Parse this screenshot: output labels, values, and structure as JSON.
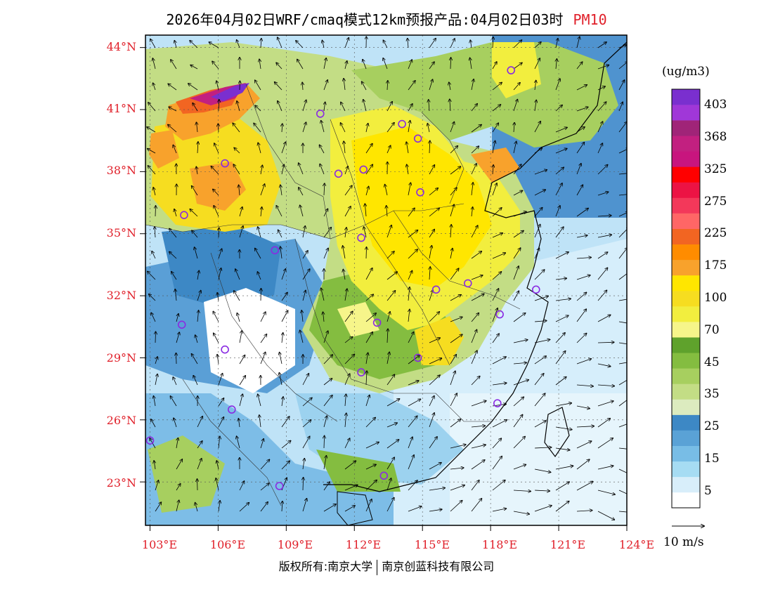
{
  "header": {
    "title": "2026年04月02日WRF/cmaq模式12km预报产品:04月02日03时",
    "pollutant": "PM10"
  },
  "map": {
    "lat_labels": [
      "44°N",
      "41°N",
      "38°N",
      "35°N",
      "32°N",
      "29°N",
      "26°N",
      "23°N"
    ],
    "lon_labels": [
      "103°E",
      "106°E",
      "109°E",
      "112°E",
      "115°E",
      "118°E",
      "121°E",
      "124°E"
    ],
    "extent": {
      "lon_min": 102.8,
      "lon_max": 124,
      "lat_min": 20.9,
      "lat_max": 44.6
    },
    "stations": [
      {
        "lon": 118.9,
        "lat": 42.9
      },
      {
        "lon": 110.5,
        "lat": 40.8
      },
      {
        "lon": 114.1,
        "lat": 40.3
      },
      {
        "lon": 114.8,
        "lat": 39.6
      },
      {
        "lon": 106.3,
        "lat": 38.4
      },
      {
        "lon": 111.3,
        "lat": 37.9
      },
      {
        "lon": 112.4,
        "lat": 38.1
      },
      {
        "lon": 114.9,
        "lat": 37.0
      },
      {
        "lon": 104.5,
        "lat": 35.9
      },
      {
        "lon": 112.3,
        "lat": 34.8
      },
      {
        "lon": 108.5,
        "lat": 34.2
      },
      {
        "lon": 115.6,
        "lat": 32.3
      },
      {
        "lon": 117.0,
        "lat": 32.6
      },
      {
        "lon": 120.0,
        "lat": 32.3
      },
      {
        "lon": 104.4,
        "lat": 30.6
      },
      {
        "lon": 113.0,
        "lat": 30.7
      },
      {
        "lon": 118.4,
        "lat": 31.1
      },
      {
        "lon": 106.3,
        "lat": 29.4
      },
      {
        "lon": 114.8,
        "lat": 29.0
      },
      {
        "lon": 112.3,
        "lat": 28.3
      },
      {
        "lon": 106.6,
        "lat": 26.5
      },
      {
        "lon": 118.3,
        "lat": 26.8
      },
      {
        "lon": 103.0,
        "lat": 25.0
      },
      {
        "lon": 108.7,
        "lat": 22.8
      },
      {
        "lon": 113.3,
        "lat": 23.3
      }
    ]
  },
  "colorbar": {
    "unit": "(ug/m3)",
    "colors": [
      "#ffffff",
      "#d8eefa",
      "#a6dcf3",
      "#78bde6",
      "#5aa2d6",
      "#3d88c5",
      "#dcebbf",
      "#c3dd85",
      "#a7cf5f",
      "#84bd40",
      "#5fa22c",
      "#f6f58a",
      "#f2ee3e",
      "#f6dd20",
      "#ffe600",
      "#f8a22c",
      "#ff8c00",
      "#f26522",
      "#ff6666",
      "#f3385a",
      "#ec1344",
      "#ff0000",
      "#c8157e",
      "#c22080",
      "#a02478",
      "#a037d8",
      "#7a2fcf"
    ],
    "labels": [
      "5",
      "15",
      "25",
      "35",
      "45",
      "70",
      "100",
      "175",
      "225",
      "275",
      "325",
      "368",
      "403"
    ]
  },
  "legend": {
    "wind_scale": "10 m/s"
  },
  "footer": {
    "copyright_left": "版权所有:南京大学",
    "copyright_right": "南京创蓝科技有限公司"
  }
}
